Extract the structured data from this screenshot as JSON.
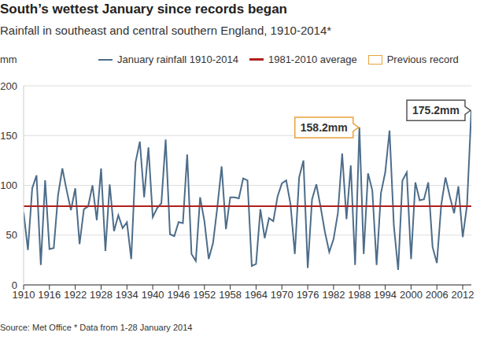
{
  "chart_data": {
    "type": "line",
    "title": "South’s wettest January since records began",
    "subtitle": "Rainfall in southeast and central southern England, 1910-2014*",
    "y_label": "mm",
    "source": "Source: Met Office * Data from 1-28 January 2014",
    "x": [
      1910,
      1911,
      1912,
      1913,
      1914,
      1915,
      1916,
      1917,
      1918,
      1919,
      1920,
      1921,
      1922,
      1923,
      1924,
      1925,
      1926,
      1927,
      1928,
      1929,
      1930,
      1931,
      1932,
      1933,
      1934,
      1935,
      1936,
      1937,
      1938,
      1939,
      1940,
      1941,
      1942,
      1943,
      1944,
      1945,
      1946,
      1947,
      1948,
      1949,
      1950,
      1951,
      1952,
      1953,
      1954,
      1955,
      1956,
      1957,
      1958,
      1959,
      1960,
      1961,
      1962,
      1963,
      1964,
      1965,
      1966,
      1967,
      1968,
      1969,
      1970,
      1971,
      1972,
      1973,
      1974,
      1975,
      1976,
      1977,
      1978,
      1979,
      1980,
      1981,
      1982,
      1983,
      1984,
      1985,
      1986,
      1987,
      1988,
      1989,
      1990,
      1991,
      1992,
      1993,
      1994,
      1995,
      1996,
      1997,
      1998,
      1999,
      2000,
      2001,
      2002,
      2003,
      2004,
      2005,
      2006,
      2007,
      2008,
      2009,
      2010,
      2011,
      2012,
      2013,
      2014
    ],
    "series": [
      {
        "name": "January rainfall 1910-2014",
        "color": "#4d6d8a",
        "values": [
          73,
          35,
          97,
          110,
          20,
          105,
          36,
          37,
          90,
          117,
          95,
          75,
          97,
          41,
          76,
          79,
          100,
          65,
          117,
          34,
          101,
          54,
          70,
          57,
          63,
          26,
          123,
          144,
          88,
          138,
          68,
          77,
          82,
          146,
          51,
          49,
          63,
          62,
          131,
          31,
          24,
          88,
          64,
          26,
          42,
          78,
          119,
          56,
          88,
          88,
          87,
          107,
          105,
          19,
          21,
          76,
          47,
          67,
          64,
          89,
          102,
          105,
          81,
          31,
          108,
          125,
          17,
          86,
          101,
          78,
          53,
          33,
          46,
          72,
          132,
          66,
          120,
          20,
          158.2,
          31,
          112,
          95,
          20,
          92,
          113,
          155,
          60,
          15,
          105,
          113,
          26,
          103,
          85,
          86,
          103,
          38,
          22,
          80,
          108,
          89,
          72,
          99,
          48,
          80,
          175.2
        ]
      }
    ],
    "average": {
      "name": "1981-2010 average",
      "value": 79,
      "color": "#b0201e"
    },
    "annotations": [
      {
        "name": "Previous record",
        "x": 1988,
        "y": 158.2,
        "label": "158.2mm",
        "color": "#e8a33c"
      },
      {
        "x": 2014,
        "y": 175.2,
        "label": "175.2mm",
        "color": "#555555"
      }
    ],
    "xlim": [
      1910,
      2014
    ],
    "xticks": [
      1910,
      1916,
      1922,
      1928,
      1934,
      1940,
      1946,
      1952,
      1958,
      1964,
      1970,
      1976,
      1982,
      1988,
      1994,
      2000,
      2006,
      2012
    ],
    "ylim": [
      0,
      200
    ],
    "yticks": [
      0,
      50,
      100,
      150,
      200
    ],
    "grid": true,
    "legend": "top"
  }
}
